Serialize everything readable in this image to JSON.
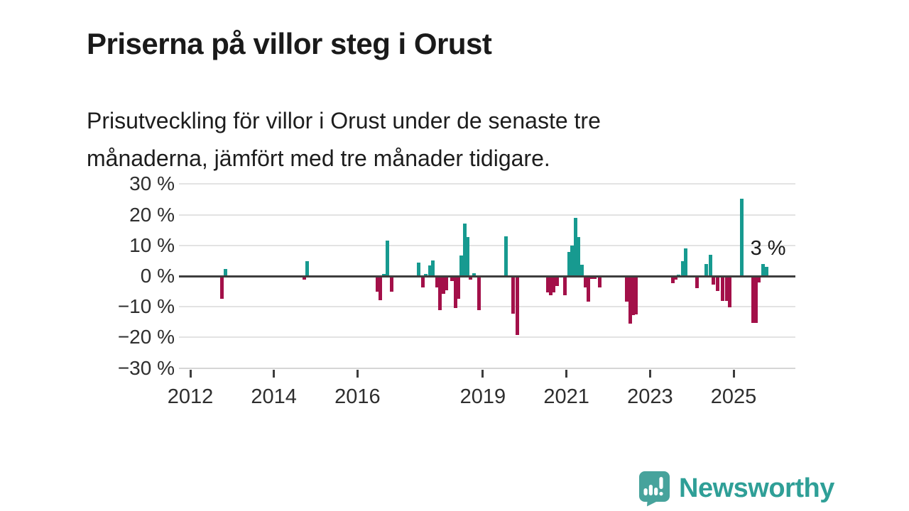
{
  "header": {
    "title": "Priserna på villor steg i Orust",
    "subtitle_lines": [
      "Prisutveckling för villor i Orust under de senaste tre",
      "månaderna, jämfört med tre månader tidigare."
    ]
  },
  "branding": {
    "wordmark": "Newsworthy",
    "logo_icon": "bar-chart-exclamation-speech-bubble-icon",
    "badge_color": "#47a39c",
    "wordmark_color": "#2f9f97"
  },
  "chart_data": {
    "type": "bar",
    "title": "Priserna på villor steg i Orust",
    "subtitle": "Prisutveckling för villor i Orust under de senaste tre månaderna, jämfört med tre månader tidigare.",
    "unit": "%",
    "grid": true,
    "legend_position": "none",
    "colors": {
      "positive": "#179a90",
      "negative": "#a31049",
      "zero_line": "#3d3d3d",
      "grid_line": "#e3e3e3"
    },
    "ylim": [
      -30,
      30
    ],
    "xlim": [
      2011.73,
      2026.48
    ],
    "y_ticks": [
      {
        "value": 30,
        "label": "30 %"
      },
      {
        "value": 20,
        "label": "20 %"
      },
      {
        "value": 10,
        "label": "10 %"
      },
      {
        "value": 0,
        "label": "0 %"
      },
      {
        "value": -10,
        "label": "−10 %"
      },
      {
        "value": -20,
        "label": "−20 %"
      },
      {
        "value": -30,
        "label": "−30 %"
      }
    ],
    "x_ticks": [
      {
        "value": 2012,
        "label": "2012"
      },
      {
        "value": 2014,
        "label": "2014"
      },
      {
        "value": 2016,
        "label": "2016"
      },
      {
        "value": 2019,
        "label": "2019"
      },
      {
        "value": 2021,
        "label": "2021"
      },
      {
        "value": 2023,
        "label": "2023"
      },
      {
        "value": 2025,
        "label": "2025"
      }
    ],
    "annotation": {
      "text": "3 %",
      "x": 2025.4,
      "y": 9
    },
    "points": [
      {
        "x": 2012.75,
        "y": -7.3
      },
      {
        "x": 2012.84,
        "y": 2.2
      },
      {
        "x": 2014.72,
        "y": -1.1
      },
      {
        "x": 2014.8,
        "y": 4.9
      },
      {
        "x": 2016.47,
        "y": -5.0
      },
      {
        "x": 2016.55,
        "y": -7.8
      },
      {
        "x": 2016.63,
        "y": 0.6
      },
      {
        "x": 2016.71,
        "y": 11.5
      },
      {
        "x": 2016.82,
        "y": -5.2
      },
      {
        "x": 2017.47,
        "y": 4.4
      },
      {
        "x": 2017.56,
        "y": -3.6
      },
      {
        "x": 2017.64,
        "y": 0.8
      },
      {
        "x": 2017.73,
        "y": 3.5
      },
      {
        "x": 2017.81,
        "y": 5.1
      },
      {
        "x": 2017.9,
        "y": -3.6
      },
      {
        "x": 2017.98,
        "y": -11.1
      },
      {
        "x": 2018.06,
        "y": -5.7
      },
      {
        "x": 2018.13,
        "y": -4.7
      },
      {
        "x": 2018.27,
        "y": -1.7
      },
      {
        "x": 2018.34,
        "y": -10.3
      },
      {
        "x": 2018.41,
        "y": -7.3
      },
      {
        "x": 2018.49,
        "y": 6.8
      },
      {
        "x": 2018.56,
        "y": 17.2
      },
      {
        "x": 2018.63,
        "y": 12.8
      },
      {
        "x": 2018.71,
        "y": -1.2
      },
      {
        "x": 2018.79,
        "y": 0.9
      },
      {
        "x": 2018.9,
        "y": -11.0
      },
      {
        "x": 2019.56,
        "y": 13.0
      },
      {
        "x": 2019.72,
        "y": -12.3
      },
      {
        "x": 2019.82,
        "y": -19.1
      },
      {
        "x": 2020.55,
        "y": -5.4
      },
      {
        "x": 2020.62,
        "y": -6.2
      },
      {
        "x": 2020.69,
        "y": -5.4
      },
      {
        "x": 2020.77,
        "y": -3.2
      },
      {
        "x": 2020.97,
        "y": -6.2
      },
      {
        "x": 2021.06,
        "y": 7.8
      },
      {
        "x": 2021.13,
        "y": 10.0
      },
      {
        "x": 2021.21,
        "y": 18.9
      },
      {
        "x": 2021.29,
        "y": 12.7
      },
      {
        "x": 2021.37,
        "y": 3.6
      },
      {
        "x": 2021.46,
        "y": -3.7
      },
      {
        "x": 2021.53,
        "y": -8.3
      },
      {
        "x": 2021.61,
        "y": -1.0
      },
      {
        "x": 2021.68,
        "y": -1.0
      },
      {
        "x": 2021.79,
        "y": -3.7
      },
      {
        "x": 2022.45,
        "y": -8.3
      },
      {
        "x": 2022.53,
        "y": -15.6
      },
      {
        "x": 2022.6,
        "y": -12.8
      },
      {
        "x": 2022.67,
        "y": -12.5
      },
      {
        "x": 2023.54,
        "y": -2.3
      },
      {
        "x": 2023.61,
        "y": -1.2
      },
      {
        "x": 2023.68,
        "y": 0.5
      },
      {
        "x": 2023.78,
        "y": 4.9
      },
      {
        "x": 2023.86,
        "y": 9.0
      },
      {
        "x": 2024.12,
        "y": -3.9
      },
      {
        "x": 2024.35,
        "y": 3.9
      },
      {
        "x": 2024.44,
        "y": 6.9
      },
      {
        "x": 2024.52,
        "y": -2.8
      },
      {
        "x": 2024.61,
        "y": -4.8
      },
      {
        "x": 2024.74,
        "y": -8.2
      },
      {
        "x": 2024.83,
        "y": -8.0
      },
      {
        "x": 2024.91,
        "y": -10.2
      },
      {
        "x": 2025.19,
        "y": 25.2
      },
      {
        "x": 2025.46,
        "y": -15.2
      },
      {
        "x": 2025.53,
        "y": -15.2
      },
      {
        "x": 2025.61,
        "y": -2.1
      },
      {
        "x": 2025.71,
        "y": 4.0
      },
      {
        "x": 2025.79,
        "y": 3.0
      }
    ]
  }
}
